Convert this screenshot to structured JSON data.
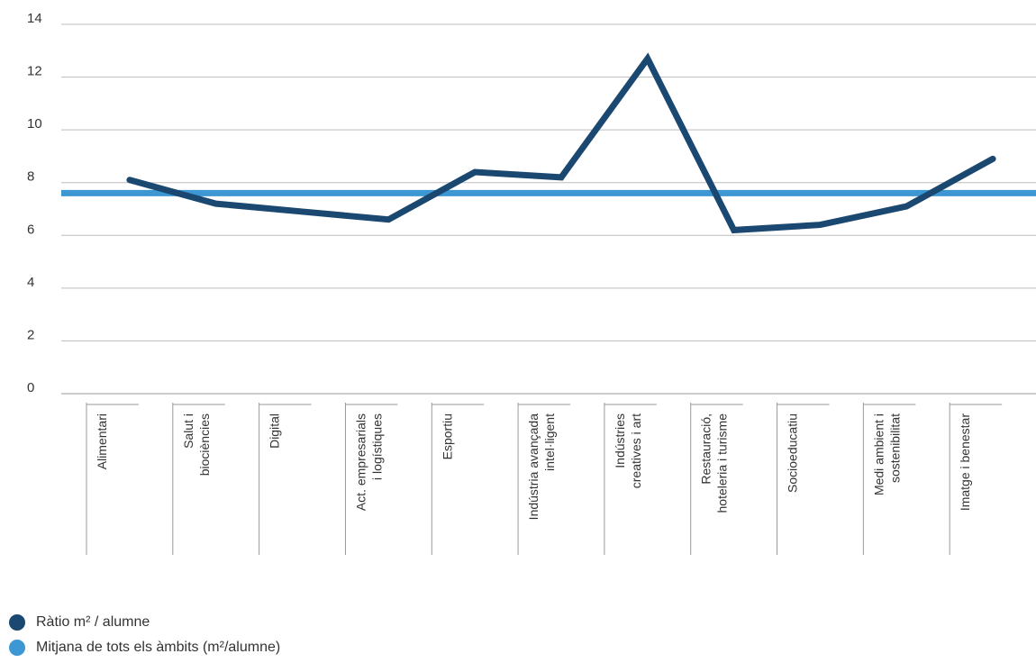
{
  "chart_data": {
    "type": "line",
    "categories": [
      [
        "Alimentari"
      ],
      [
        "Salut i",
        "biociències"
      ],
      [
        "Digital"
      ],
      [
        "Act. empresarials",
        "i logístiques"
      ],
      [
        "Esportiu"
      ],
      [
        "Indústria avançada",
        "intel·ligent"
      ],
      [
        "Indústries",
        "creatives i art"
      ],
      [
        "Restauració,",
        "hoteleria i turisme"
      ],
      [
        "Socioeducatiu"
      ],
      [
        "Medi ambient i",
        "sostenibilitat"
      ],
      [
        "Imatge i benestar"
      ]
    ],
    "series": [
      {
        "name": "Ràtio m² / alumne",
        "color": "#1b4870",
        "values": [
          8.1,
          7.2,
          6.9,
          6.6,
          8.4,
          8.2,
          12.7,
          6.2,
          6.4,
          7.1,
          8.9
        ]
      },
      {
        "name": "Mitjana de tots els àmbits (m²/alumne)",
        "color": "#3d97d3",
        "values": [
          7.6,
          7.6,
          7.6,
          7.6,
          7.6,
          7.6,
          7.6,
          7.6,
          7.6,
          7.6,
          7.6
        ]
      }
    ],
    "yticks": [
      0,
      2,
      4,
      6,
      8,
      10,
      12,
      14
    ],
    "ylim": [
      0,
      14
    ],
    "grid": true,
    "legend_position": "bottom-left"
  }
}
